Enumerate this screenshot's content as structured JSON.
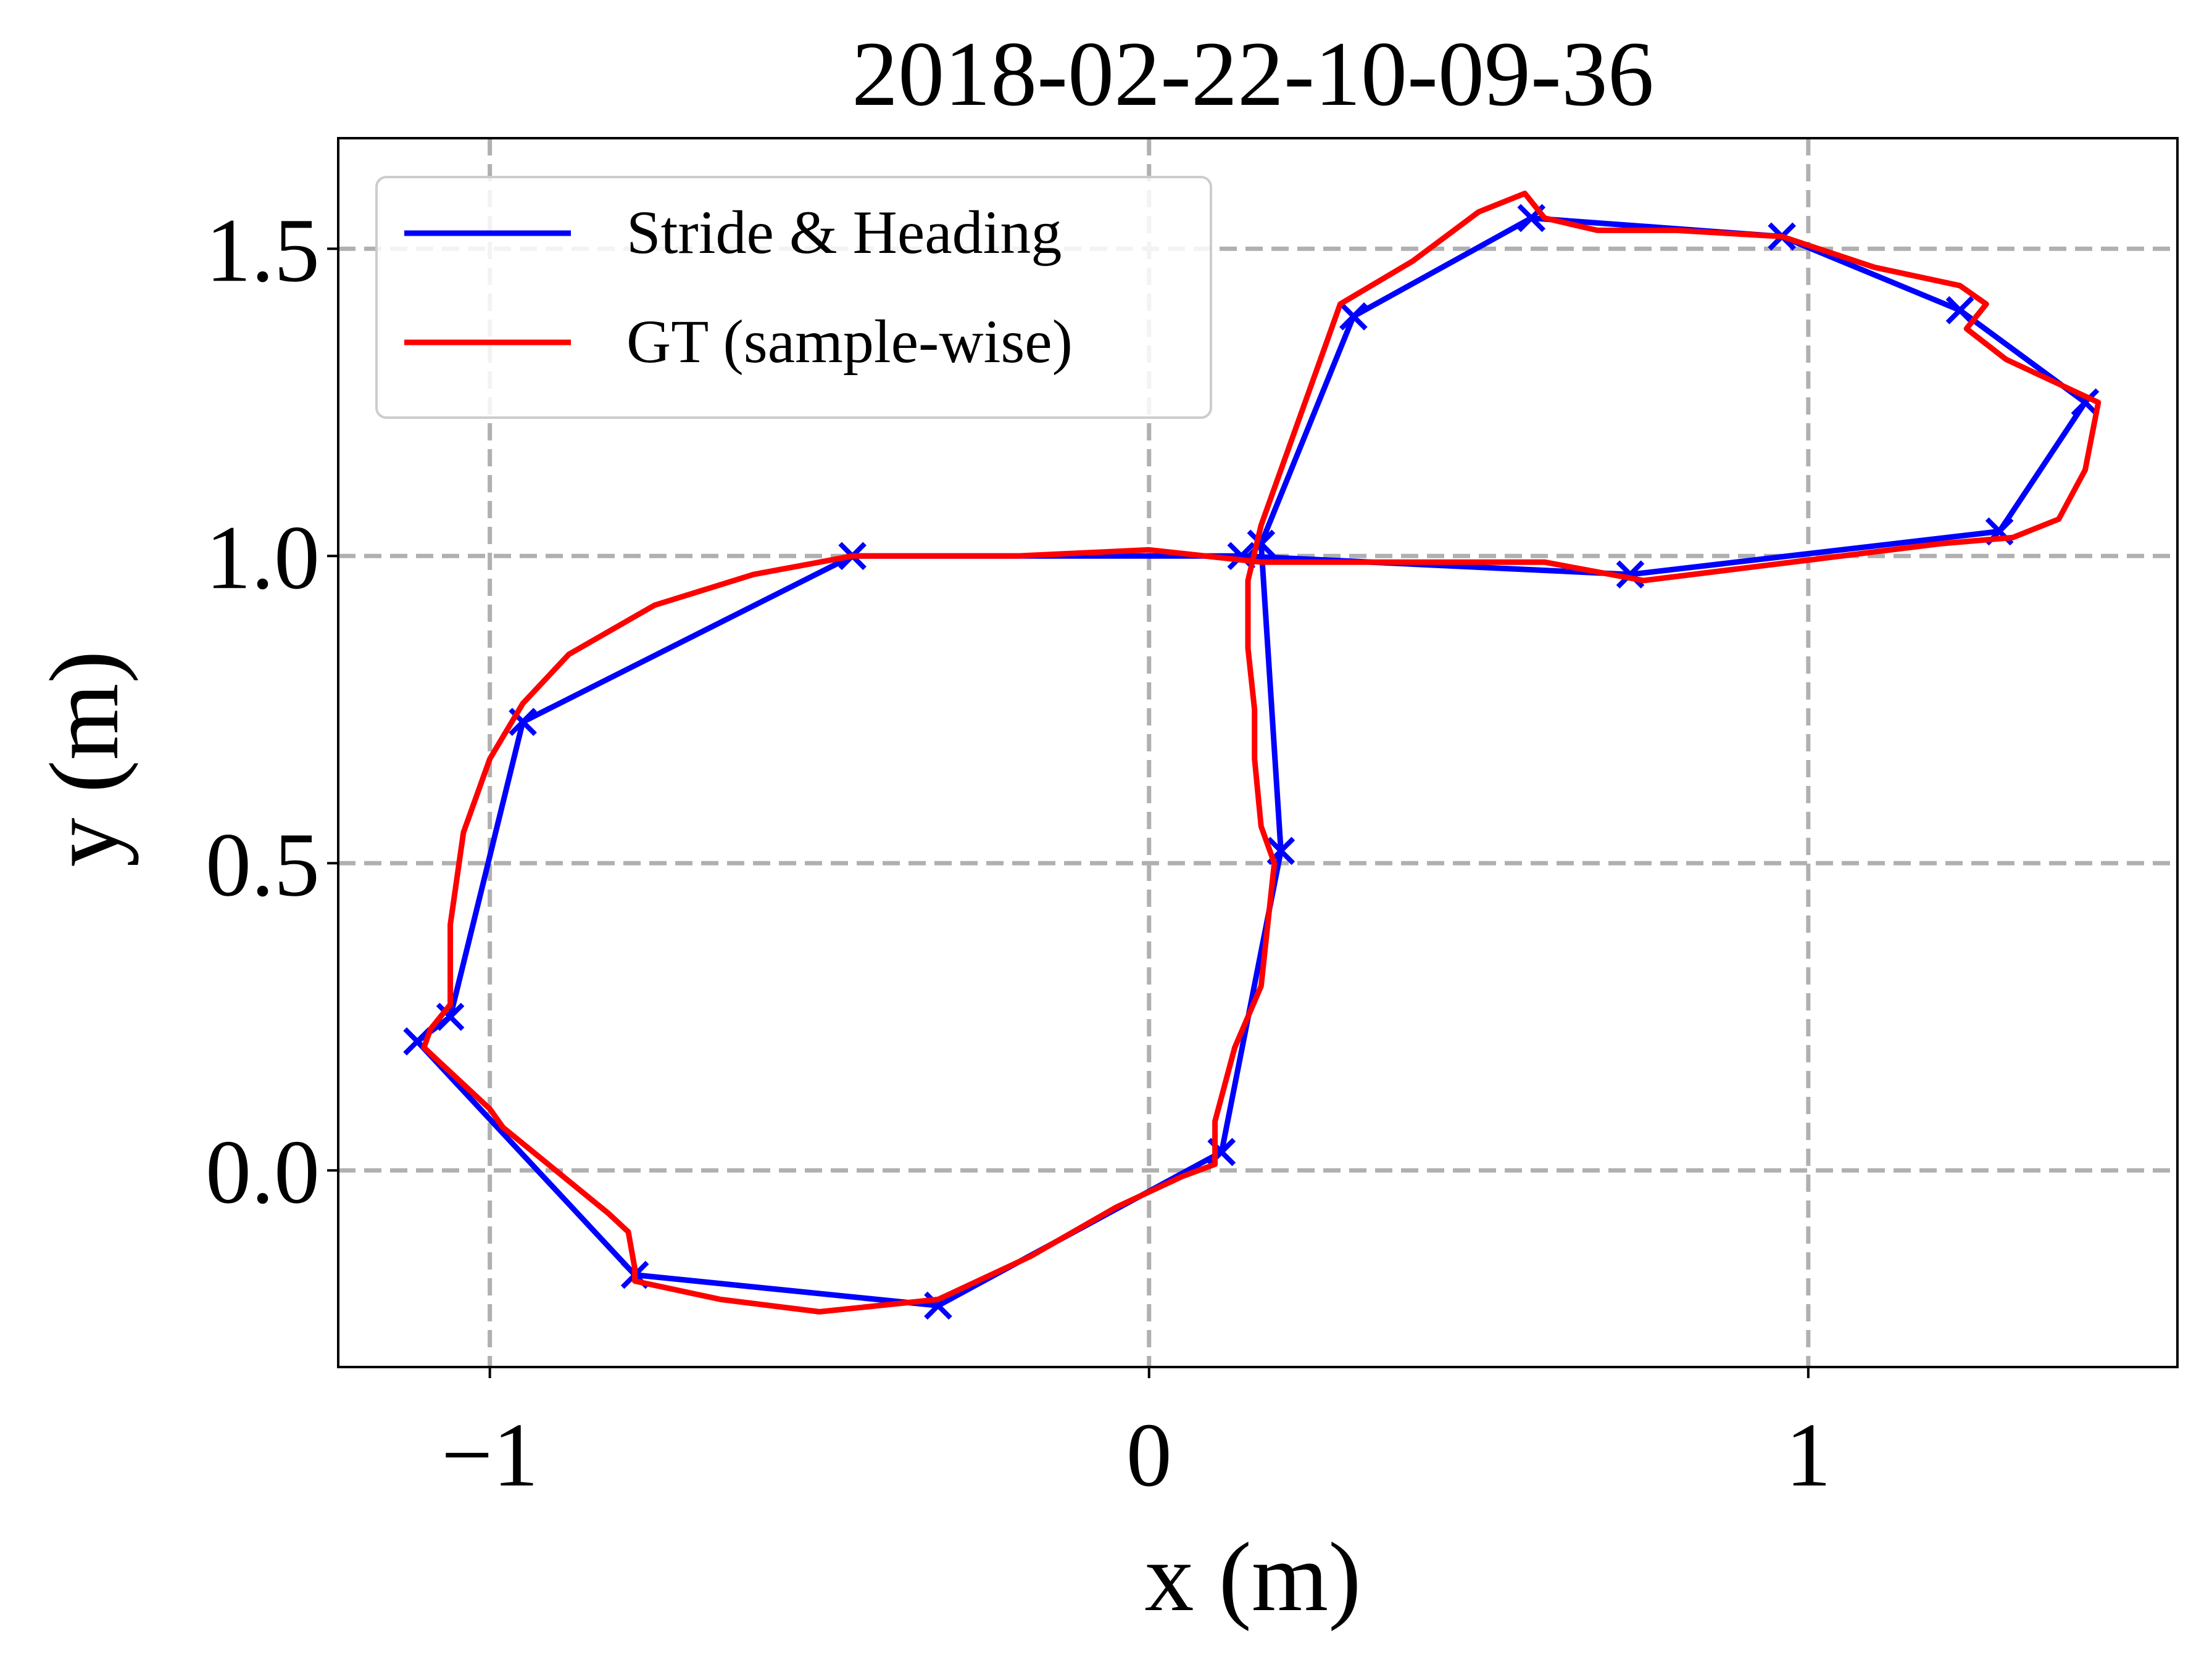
{
  "chart_data": {
    "type": "line",
    "title": "2018-02-22-10-09-36",
    "xlabel": "x (m)",
    "ylabel": "y (m)",
    "xlim": [
      -1.23,
      1.56
    ],
    "ylim": [
      -0.32,
      1.68
    ],
    "xticks": [
      -1,
      0,
      1
    ],
    "xtick_labels": [
      "−1",
      "0",
      "1"
    ],
    "yticks": [
      0.0,
      0.5,
      1.0,
      1.5
    ],
    "ytick_labels": [
      "0.0",
      "0.5",
      "1.0",
      "1.5"
    ],
    "grid": true,
    "legend_position": "top-left",
    "series": [
      {
        "name": "Stride & Heading",
        "color": "#0000ff",
        "marker": "x",
        "points": [
          [
            0.11,
            0.03
          ],
          [
            0.2,
            0.52
          ],
          [
            0.17,
            1.02
          ],
          [
            0.31,
            1.39
          ],
          [
            0.58,
            1.55
          ],
          [
            0.96,
            1.52
          ],
          [
            1.23,
            1.4
          ],
          [
            1.42,
            1.25
          ],
          [
            1.29,
            1.04
          ],
          [
            0.73,
            0.97
          ],
          [
            0.14,
            1.0
          ],
          [
            -0.45,
            1.0
          ],
          [
            -0.95,
            0.73
          ],
          [
            -1.06,
            0.25
          ],
          [
            -1.11,
            0.21
          ],
          [
            -0.78,
            -0.17
          ],
          [
            -0.32,
            -0.22
          ],
          [
            0.11,
            0.03
          ]
        ]
      },
      {
        "name": "GT (sample-wise)",
        "color": "#ff0000",
        "points": [
          [
            0.1,
            0.01
          ],
          [
            0.1,
            0.08
          ],
          [
            0.13,
            0.2
          ],
          [
            0.17,
            0.3
          ],
          [
            0.18,
            0.4
          ],
          [
            0.19,
            0.5
          ],
          [
            0.17,
            0.56
          ],
          [
            0.16,
            0.67
          ],
          [
            0.16,
            0.75
          ],
          [
            0.15,
            0.85
          ],
          [
            0.15,
            0.96
          ],
          [
            0.17,
            1.05
          ],
          [
            0.22,
            1.2
          ],
          [
            0.27,
            1.35
          ],
          [
            0.29,
            1.41
          ],
          [
            0.4,
            1.48
          ],
          [
            0.5,
            1.56
          ],
          [
            0.57,
            1.59
          ],
          [
            0.6,
            1.55
          ],
          [
            0.68,
            1.53
          ],
          [
            0.8,
            1.53
          ],
          [
            0.96,
            1.52
          ],
          [
            1.1,
            1.47
          ],
          [
            1.23,
            1.44
          ],
          [
            1.27,
            1.41
          ],
          [
            1.24,
            1.37
          ],
          [
            1.3,
            1.32
          ],
          [
            1.4,
            1.27
          ],
          [
            1.44,
            1.25
          ],
          [
            1.42,
            1.14
          ],
          [
            1.38,
            1.06
          ],
          [
            1.31,
            1.03
          ],
          [
            1.2,
            1.02
          ],
          [
            1.05,
            1.0
          ],
          [
            0.9,
            0.98
          ],
          [
            0.75,
            0.96
          ],
          [
            0.6,
            0.99
          ],
          [
            0.4,
            0.99
          ],
          [
            0.17,
            0.99
          ],
          [
            0.0,
            1.01
          ],
          [
            -0.2,
            1.0
          ],
          [
            -0.45,
            1.0
          ],
          [
            -0.6,
            0.97
          ],
          [
            -0.75,
            0.92
          ],
          [
            -0.88,
            0.84
          ],
          [
            -0.95,
            0.76
          ],
          [
            -1.0,
            0.67
          ],
          [
            -1.04,
            0.55
          ],
          [
            -1.06,
            0.4
          ],
          [
            -1.06,
            0.27
          ],
          [
            -1.09,
            0.23
          ],
          [
            -1.1,
            0.2
          ],
          [
            -1.05,
            0.15
          ],
          [
            -1.0,
            0.1
          ],
          [
            -0.98,
            0.07
          ],
          [
            -0.9,
            0.0
          ],
          [
            -0.82,
            -0.07
          ],
          [
            -0.79,
            -0.1
          ],
          [
            -0.78,
            -0.16
          ],
          [
            -0.78,
            -0.18
          ],
          [
            -0.65,
            -0.21
          ],
          [
            -0.5,
            -0.23
          ],
          [
            -0.32,
            -0.21
          ],
          [
            -0.18,
            -0.14
          ],
          [
            -0.05,
            -0.06
          ],
          [
            0.05,
            -0.01
          ],
          [
            0.1,
            0.01
          ]
        ]
      }
    ]
  }
}
